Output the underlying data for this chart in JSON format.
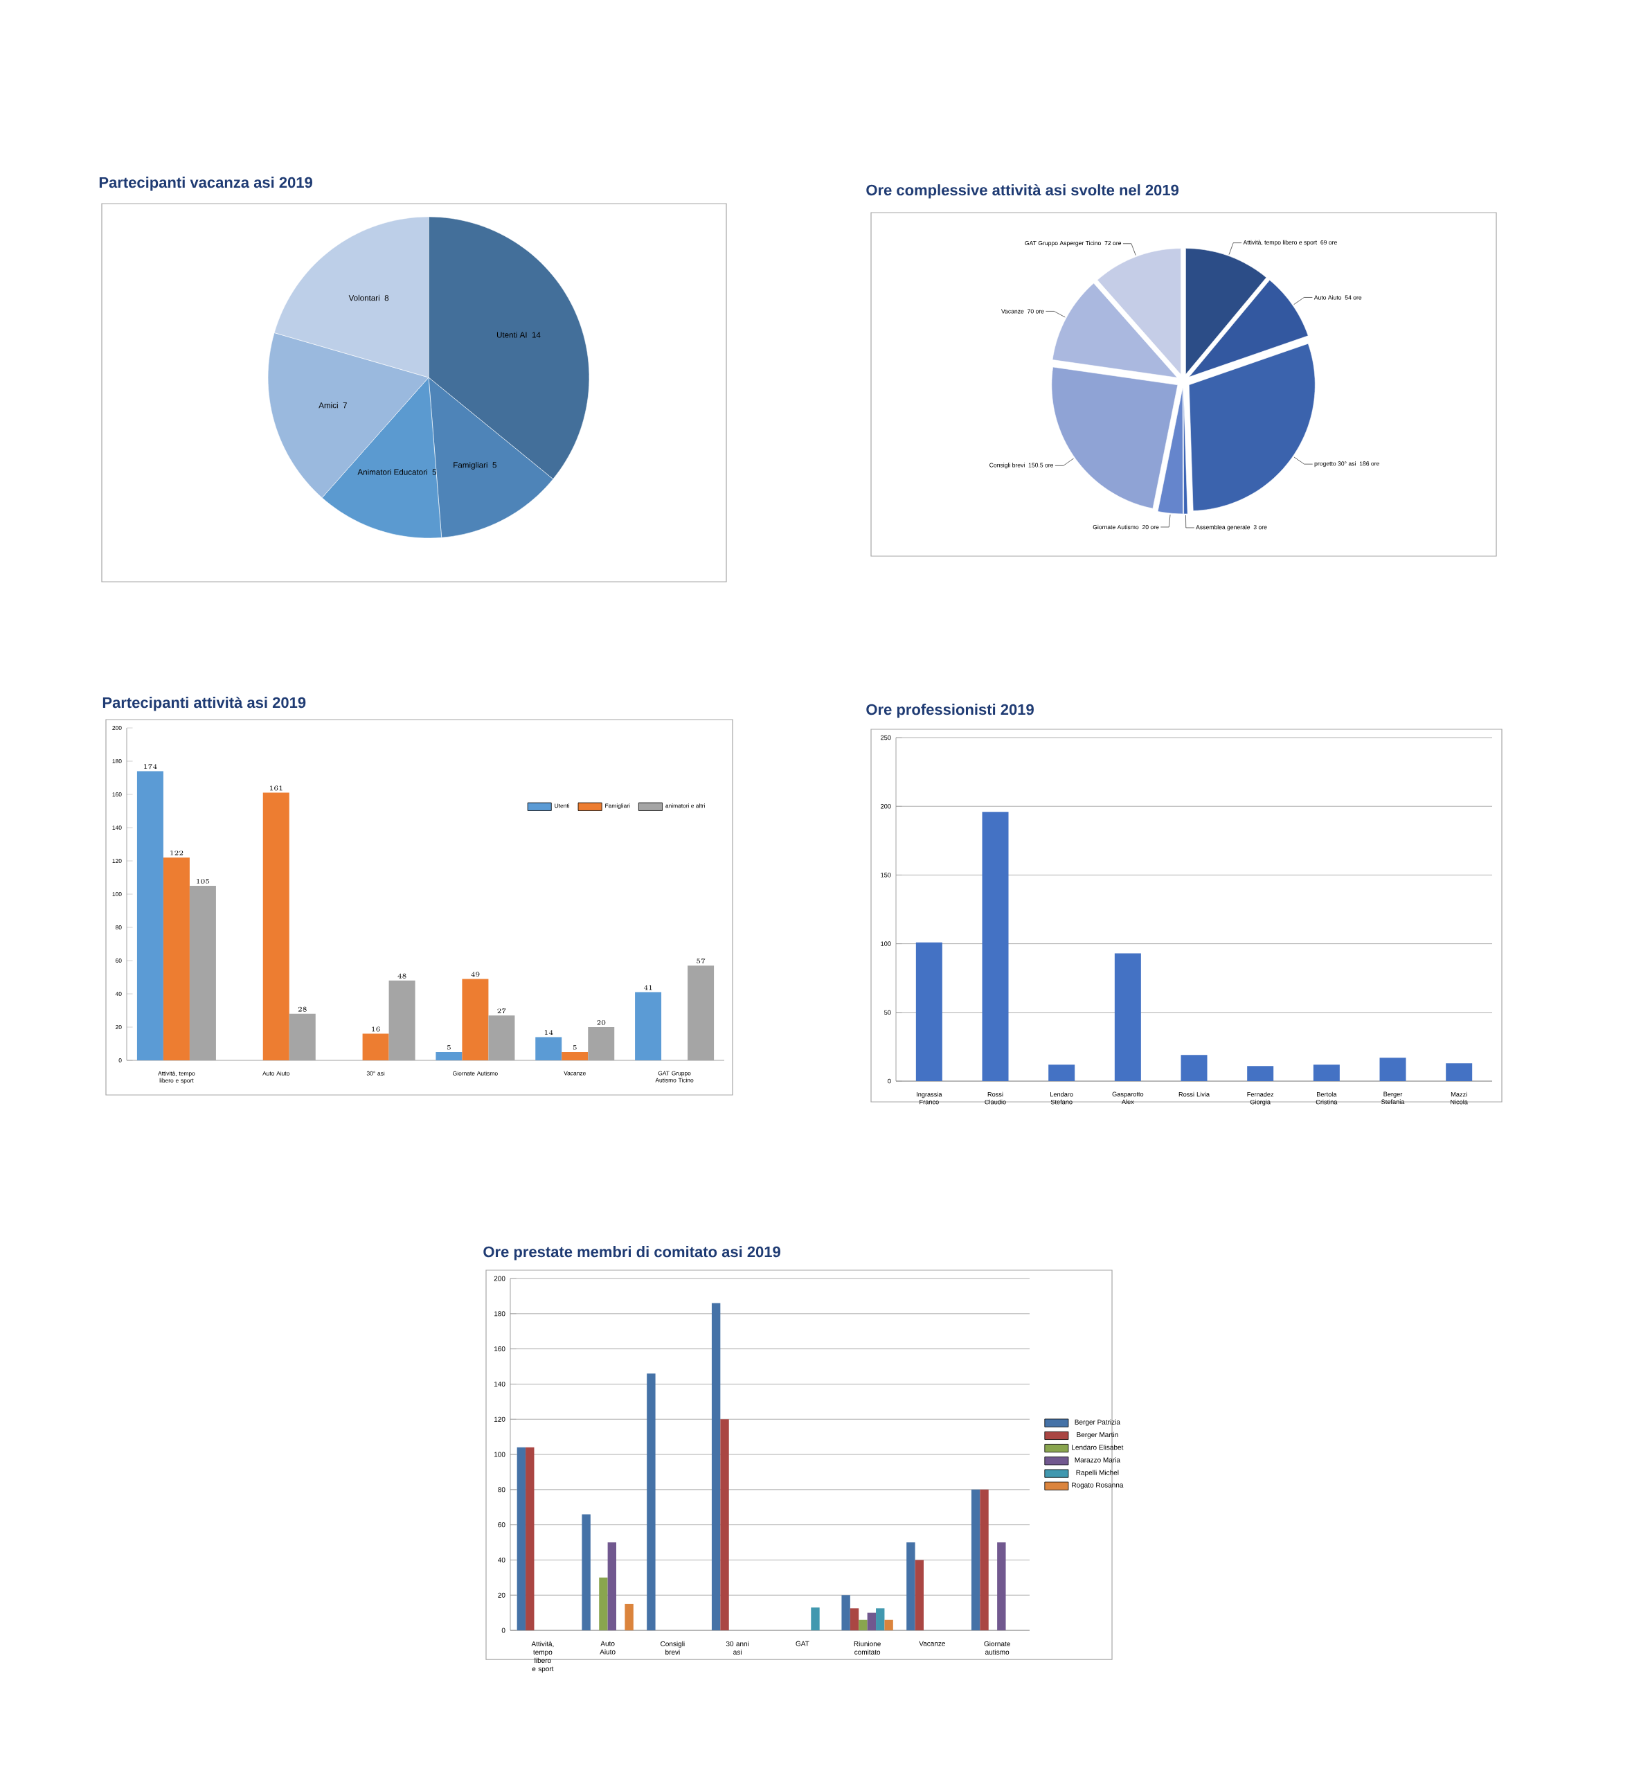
{
  "chart_data": [
    {
      "type": "pie",
      "title": "Partecipanti vacanza asi 2019",
      "categories": [
        "Utenti AI",
        "Famigliari",
        "Animatori Educatori",
        "Amici",
        "Volontari"
      ],
      "values": [
        14,
        5,
        5,
        7,
        8
      ],
      "colors": [
        "#436f9a",
        "#4e84b8",
        "#5b9ad0",
        "#9ab9de",
        "#bdcfe8"
      ],
      "data_labels": true
    },
    {
      "type": "pie",
      "title": "Ore complessive attività asi svolte nel 2019",
      "categories": [
        "Attività, tempo libero e sport",
        "Auto Aiuto",
        "progetto 30° asi",
        "Assemblea generale",
        "Giornate Autismo",
        "Consigli brevi",
        "Vacanze",
        "GAT Gruppo Asperger Ticino"
      ],
      "values": [
        69,
        54,
        186,
        3,
        20,
        150.5,
        70,
        72
      ],
      "value_labels": [
        "69 ore",
        "54 ore",
        "186 ore",
        "3 ore",
        "20 ore",
        "150.5 ore",
        "70 ore",
        "72 ore"
      ],
      "colors": [
        "#2c4d87",
        "#3358a0",
        "#3b63ad",
        "#3a63b5",
        "#6585cc",
        "#8fa3d5",
        "#aab8df",
        "#c5cde7"
      ]
    },
    {
      "type": "bar",
      "title": "Partecipanti attività asi 2019",
      "categories": [
        "Attività, tempo libero e sport",
        "Auto Aiuto",
        "30° asi",
        "Giornate Autismo",
        "Vacanze",
        "GAT Gruppo Autismo Ticino"
      ],
      "series": [
        {
          "name": "Utenti",
          "color": "#5b9bd5",
          "values": [
            174,
            null,
            null,
            5,
            14,
            41
          ]
        },
        {
          "name": "Famigliari",
          "color": "#ed7d31",
          "values": [
            122,
            161,
            16,
            49,
            5,
            null
          ]
        },
        {
          "name": "animatori e altri",
          "color": "#a5a5a5",
          "values": [
            105,
            28,
            48,
            27,
            20,
            57
          ]
        }
      ],
      "ylim": [
        0,
        200
      ],
      "yticks": [
        0,
        20,
        40,
        60,
        80,
        100,
        120,
        140,
        160,
        180,
        200
      ],
      "data_labels": true,
      "legend": "top right"
    },
    {
      "type": "bar",
      "title": "Ore professionisti 2019",
      "categories": [
        "Ingrassia Franco",
        "Rossi Claudio",
        "Lendaro Stefano",
        "Gasparotto Alex",
        "Rossi Livia",
        "Fernadez Giorgia",
        "Bertola Cristina",
        "Berger Stefania",
        "Mazzi Nicola"
      ],
      "values": [
        101,
        196,
        12,
        93,
        19,
        11,
        12,
        17,
        13
      ],
      "color": "#4472c4",
      "ylim": [
        0,
        250
      ],
      "yticks": [
        0,
        50,
        100,
        150,
        200,
        250
      ],
      "grid": "y"
    },
    {
      "type": "bar",
      "title": "Ore prestate membri di comitato asi 2019",
      "categories": [
        "Attività, tempo libero e sport",
        "Auto Aiuto",
        "Consigli brevi",
        "30 anni asi",
        "GAT",
        "Riunione comitato",
        "Vacanze",
        "Giornate autismo"
      ],
      "series": [
        {
          "name": "Berger Patrizia",
          "color": "#4572a7",
          "values": [
            104,
            66,
            146,
            186,
            null,
            20,
            50,
            80
          ]
        },
        {
          "name": "Berger Martin",
          "color": "#aa4643",
          "values": [
            104,
            null,
            null,
            120,
            null,
            12.5,
            40,
            80
          ]
        },
        {
          "name": "Lendaro Elisabet",
          "color": "#89a54e",
          "values": [
            null,
            30,
            null,
            null,
            null,
            6,
            null,
            null
          ]
        },
        {
          "name": "Marazzo Maria",
          "color": "#71588f",
          "values": [
            null,
            50,
            null,
            null,
            null,
            10,
            null,
            50
          ]
        },
        {
          "name": "Rapelli Michel",
          "color": "#4198af",
          "values": [
            null,
            null,
            null,
            null,
            13,
            12.5,
            null,
            null
          ]
        },
        {
          "name": "Rogato Rosanna",
          "color": "#db843d",
          "values": [
            null,
            15,
            null,
            null,
            null,
            6,
            null,
            null
          ]
        }
      ],
      "ylim": [
        0,
        200
      ],
      "yticks": [
        0,
        20,
        40,
        60,
        80,
        100,
        120,
        140,
        160,
        180,
        200
      ],
      "grid": "y",
      "legend": "right"
    }
  ]
}
